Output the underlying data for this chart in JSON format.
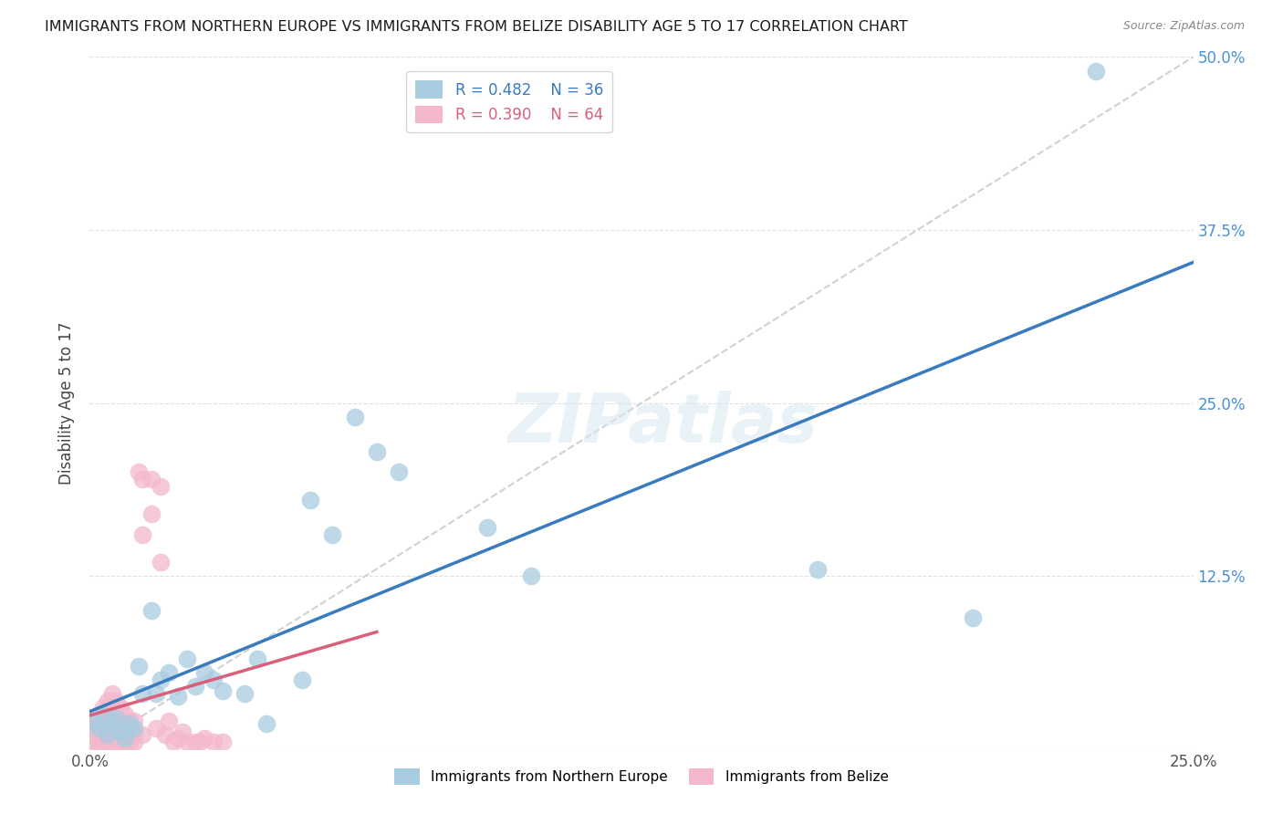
{
  "title": "IMMIGRANTS FROM NORTHERN EUROPE VS IMMIGRANTS FROM BELIZE DISABILITY AGE 5 TO 17 CORRELATION CHART",
  "source": "Source: ZipAtlas.com",
  "ylabel": "Disability Age 5 to 17",
  "xlim": [
    0.0,
    0.25
  ],
  "ylim": [
    0.0,
    0.5
  ],
  "legend_blue_r": "R = 0.482",
  "legend_blue_n": "N = 36",
  "legend_pink_r": "R = 0.390",
  "legend_pink_n": "N = 64",
  "blue_color": "#a8cce0",
  "pink_color": "#f4b8cb",
  "blue_line_color": "#3a7bbf",
  "pink_line_color": "#d9607a",
  "ref_line_color": "#cccccc",
  "tick_label_color": "#4a90d9",
  "blue_scatter": [
    [
      0.001,
      0.02
    ],
    [
      0.002,
      0.015
    ],
    [
      0.003,
      0.025
    ],
    [
      0.004,
      0.01
    ],
    [
      0.005,
      0.018
    ],
    [
      0.006,
      0.022
    ],
    [
      0.007,
      0.012
    ],
    [
      0.008,
      0.008
    ],
    [
      0.009,
      0.018
    ],
    [
      0.01,
      0.015
    ],
    [
      0.011,
      0.06
    ],
    [
      0.012,
      0.04
    ],
    [
      0.014,
      0.1
    ],
    [
      0.015,
      0.04
    ],
    [
      0.016,
      0.05
    ],
    [
      0.018,
      0.055
    ],
    [
      0.02,
      0.038
    ],
    [
      0.022,
      0.065
    ],
    [
      0.024,
      0.045
    ],
    [
      0.026,
      0.055
    ],
    [
      0.028,
      0.05
    ],
    [
      0.03,
      0.042
    ],
    [
      0.035,
      0.04
    ],
    [
      0.038,
      0.065
    ],
    [
      0.04,
      0.018
    ],
    [
      0.048,
      0.05
    ],
    [
      0.05,
      0.18
    ],
    [
      0.055,
      0.155
    ],
    [
      0.06,
      0.24
    ],
    [
      0.065,
      0.215
    ],
    [
      0.07,
      0.2
    ],
    [
      0.09,
      0.16
    ],
    [
      0.1,
      0.125
    ],
    [
      0.165,
      0.13
    ],
    [
      0.2,
      0.095
    ],
    [
      0.228,
      0.49
    ]
  ],
  "pink_scatter": [
    [
      0.001,
      0.02
    ],
    [
      0.001,
      0.015
    ],
    [
      0.001,
      0.01
    ],
    [
      0.001,
      0.005
    ],
    [
      0.002,
      0.025
    ],
    [
      0.002,
      0.02
    ],
    [
      0.002,
      0.015
    ],
    [
      0.002,
      0.01
    ],
    [
      0.002,
      0.005
    ],
    [
      0.003,
      0.03
    ],
    [
      0.003,
      0.025
    ],
    [
      0.003,
      0.02
    ],
    [
      0.003,
      0.015
    ],
    [
      0.003,
      0.01
    ],
    [
      0.003,
      0.005
    ],
    [
      0.004,
      0.035
    ],
    [
      0.004,
      0.03
    ],
    [
      0.004,
      0.025
    ],
    [
      0.004,
      0.02
    ],
    [
      0.004,
      0.015
    ],
    [
      0.004,
      0.01
    ],
    [
      0.004,
      0.005
    ],
    [
      0.005,
      0.04
    ],
    [
      0.005,
      0.03
    ],
    [
      0.005,
      0.02
    ],
    [
      0.005,
      0.01
    ],
    [
      0.005,
      0.005
    ],
    [
      0.006,
      0.035
    ],
    [
      0.006,
      0.025
    ],
    [
      0.006,
      0.015
    ],
    [
      0.006,
      0.008
    ],
    [
      0.007,
      0.03
    ],
    [
      0.007,
      0.02
    ],
    [
      0.007,
      0.012
    ],
    [
      0.007,
      0.005
    ],
    [
      0.008,
      0.025
    ],
    [
      0.008,
      0.015
    ],
    [
      0.008,
      0.005
    ],
    [
      0.009,
      0.02
    ],
    [
      0.009,
      0.012
    ],
    [
      0.009,
      0.005
    ],
    [
      0.01,
      0.02
    ],
    [
      0.01,
      0.01
    ],
    [
      0.01,
      0.005
    ],
    [
      0.011,
      0.2
    ],
    [
      0.012,
      0.195
    ],
    [
      0.012,
      0.155
    ],
    [
      0.012,
      0.01
    ],
    [
      0.014,
      0.195
    ],
    [
      0.014,
      0.17
    ],
    [
      0.015,
      0.015
    ],
    [
      0.016,
      0.135
    ],
    [
      0.016,
      0.19
    ],
    [
      0.017,
      0.01
    ],
    [
      0.018,
      0.02
    ],
    [
      0.019,
      0.005
    ],
    [
      0.02,
      0.008
    ],
    [
      0.021,
      0.012
    ],
    [
      0.022,
      0.005
    ],
    [
      0.024,
      0.005
    ],
    [
      0.025,
      0.005
    ],
    [
      0.026,
      0.008
    ],
    [
      0.028,
      0.005
    ],
    [
      0.03,
      0.005
    ]
  ],
  "watermark": "ZIPatlas",
  "background_color": "#ffffff",
  "grid_color": "#e0e0e0"
}
